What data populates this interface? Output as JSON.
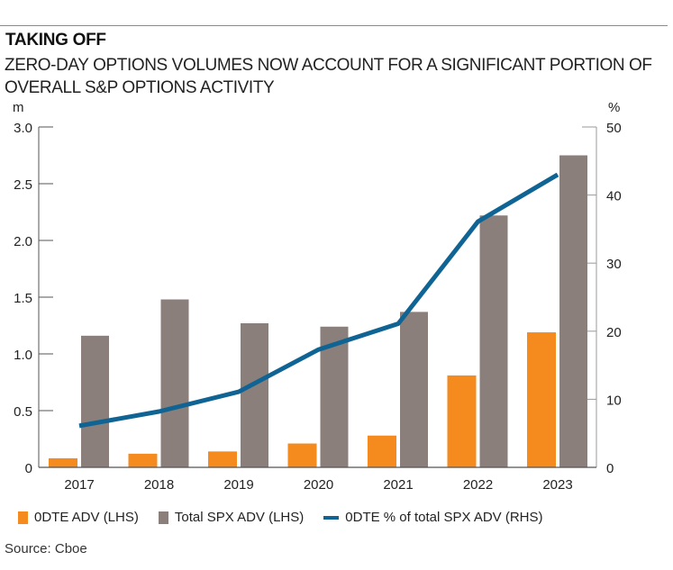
{
  "header": {
    "title": "TAKING OFF",
    "subtitle": "ZERO-DAY OPTIONS VOLUMES NOW ACCOUNT FOR A SIGNIFICANT PORTION OF OVERALL S&P OPTIONS ACTIVITY"
  },
  "colors": {
    "zero_dte": "#f58a1f",
    "total_spx": "#8b7f7b",
    "pct_line": "#0f6494",
    "axis": "#555555"
  },
  "source": "Source: Cboe",
  "chart_data": {
    "type": "bar",
    "title": "TAKING OFF",
    "subtitle": "ZERO-DAY OPTIONS VOLUMES NOW ACCOUNT FOR A SIGNIFICANT PORTION OF OVERALL S&P OPTIONS ACTIVITY",
    "categories": [
      "2017",
      "2018",
      "2019",
      "2020",
      "2021",
      "2022",
      "2023"
    ],
    "series": [
      {
        "name": "0DTE ADV (LHS)",
        "type": "bar",
        "axis": "left",
        "values": [
          0.08,
          0.12,
          0.14,
          0.21,
          0.28,
          0.81,
          1.19
        ]
      },
      {
        "name": "Total SPX ADV (LHS)",
        "type": "bar",
        "axis": "left",
        "values": [
          1.16,
          1.48,
          1.27,
          1.24,
          1.37,
          2.22,
          2.75
        ]
      },
      {
        "name": "0DTE % of total SPX ADV (RHS)",
        "type": "line",
        "axis": "right",
        "values": [
          6.1,
          8.2,
          11.1,
          17.3,
          21.1,
          36.1,
          43.0
        ]
      }
    ],
    "left_axis": {
      "label": "m",
      "ylim": [
        0,
        3.0
      ],
      "ticks": [
        "0",
        "0.5",
        "1.0",
        "1.5",
        "2.0",
        "2.5",
        "3.0"
      ],
      "tick_values": [
        0,
        0.5,
        1.0,
        1.5,
        2.0,
        2.5,
        3.0
      ]
    },
    "right_axis": {
      "label": "%",
      "ylim": [
        0,
        50
      ],
      "ticks": [
        "0",
        "10",
        "20",
        "30",
        "40",
        "50"
      ],
      "tick_values": [
        0,
        10,
        20,
        30,
        40,
        50
      ]
    },
    "xlabel": "",
    "grid": false,
    "legend_position": "bottom-left",
    "legend": [
      "0DTE ADV (LHS)",
      "Total SPX ADV (LHS)",
      "0DTE % of total SPX ADV (RHS)"
    ]
  }
}
